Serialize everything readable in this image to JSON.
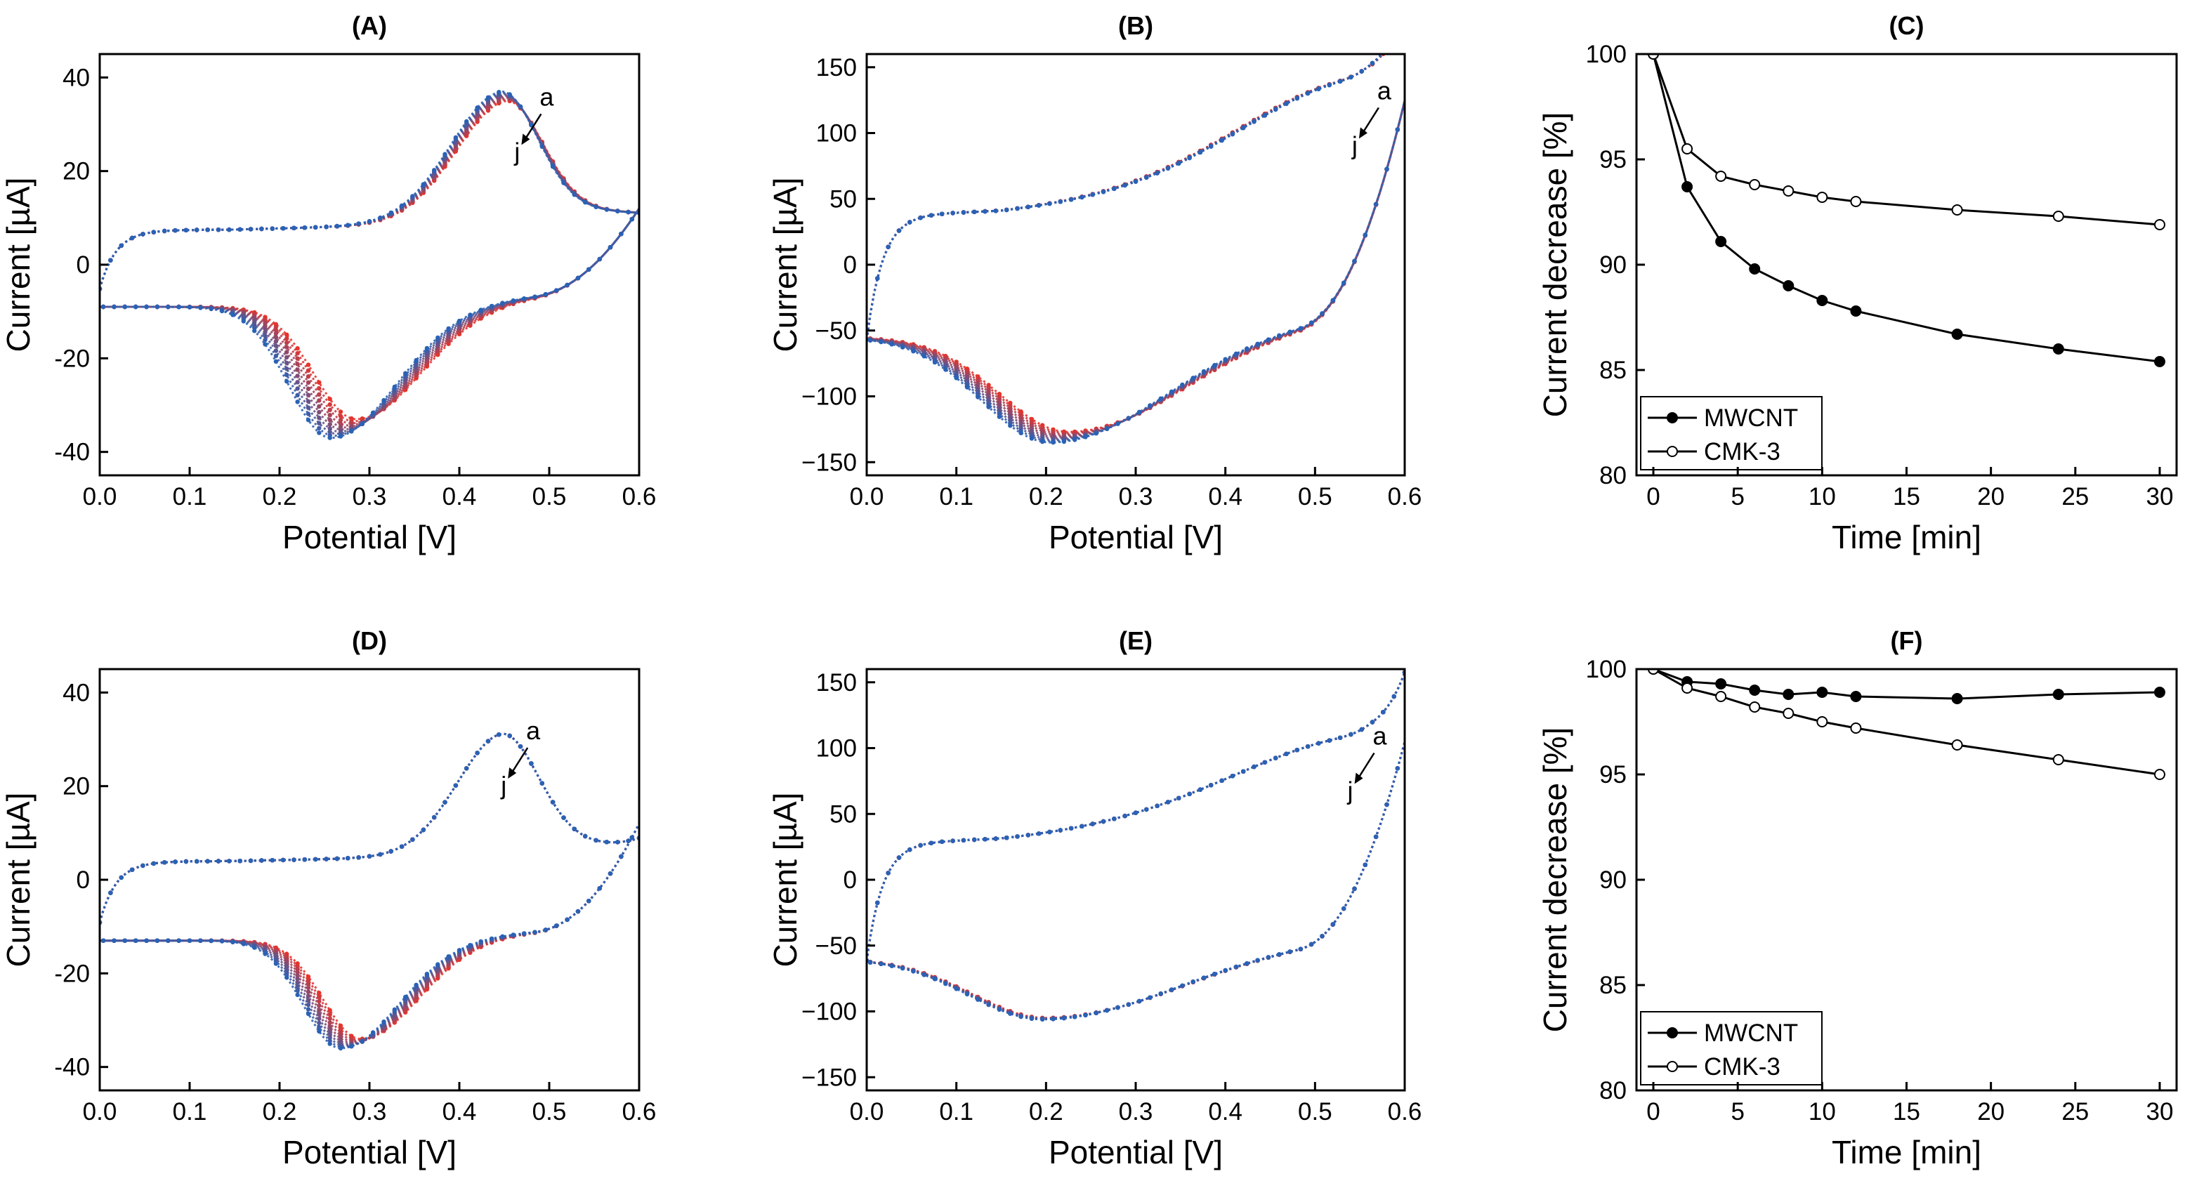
{
  "chart_data": [
    {
      "id": "A",
      "title": "(A)",
      "type": "line",
      "xlabel": "Potential [V]",
      "ylabel": "Current [µA]",
      "xlim": [
        0,
        0.6
      ],
      "ylim": [
        -45,
        45
      ],
      "xticks": [
        0.0,
        0.1,
        0.2,
        0.3,
        0.4,
        0.5,
        0.6
      ],
      "xtick_labels": [
        "0.0",
        "0.1",
        "0.2",
        "0.3",
        "0.4",
        "0.5",
        "0.6"
      ],
      "yticks": [
        -40,
        -20,
        0,
        20,
        40
      ],
      "ytick_labels": [
        "-40",
        "-20",
        "0",
        "20",
        "40"
      ],
      "grid": false,
      "cv": {
        "ilow": -9,
        "ihigh": 12,
        "i0": -5,
        "f0": 7.5,
        "fslope": 5,
        "opeak": 26,
        "oE": 0.455,
        "ow": 0.058,
        "ew": 0.03,
        "ramp": 0.5,
        "rpeak": -24,
        "rE": 0.285,
        "rw": 0.045,
        "rtail": 0.5,
        "bslope": 35
      },
      "variation": {
        "ox": -0.006,
        "oy": 2,
        "rx": -0.028,
        "ry": -4
      },
      "annotation": {
        "top": "a",
        "bottom": "j",
        "at": [
          0.48,
          31
        ]
      },
      "series_note": "10 cycles a–j, red (a) to blue (j)",
      "colors": {
        "first": "#e8342b",
        "last": "#2a62b5"
      }
    },
    {
      "id": "B",
      "title": "(B)",
      "type": "line",
      "xlabel": "Potential [V]",
      "ylabel": "Current [µA]",
      "xlim": [
        0,
        0.6
      ],
      "ylim": [
        -160,
        160
      ],
      "xticks": [
        0.0,
        0.1,
        0.2,
        0.3,
        0.4,
        0.5,
        0.6
      ],
      "xtick_labels": [
        "0.0",
        "0.1",
        "0.2",
        "0.3",
        "0.4",
        "0.5",
        "0.6"
      ],
      "yticks": [
        -150,
        -100,
        -50,
        0,
        50,
        100,
        150
      ],
      "ytick_labels": [
        "−150",
        "−100",
        "−50",
        "0",
        "50",
        "100",
        "150"
      ],
      "grid": false,
      "cv": {
        "ilow": -55,
        "ihigh": 125,
        "i0": -55,
        "f0": 40,
        "fslope": 60,
        "opeak": 78,
        "oE": 0.555,
        "ow": 0.14,
        "ew": 0.05,
        "ramp": 1.3,
        "rpeak": -72,
        "rE": 0.225,
        "rw": 0.075,
        "rtail": 0.35,
        "bslope": 180
      },
      "variation": {
        "ox": 0.004,
        "oy": 0,
        "rx": -0.02,
        "ry": -8
      },
      "annotation": {
        "top": "a",
        "bottom": "j",
        "at": [
          0.56,
          115
        ]
      },
      "series_note": "10 cycles a–j, red (a) to blue (j)",
      "colors": {
        "first": "#e8342b",
        "last": "#2a62b5"
      }
    },
    {
      "id": "C",
      "title": "(C)",
      "type": "line",
      "xlabel": "Time [min]",
      "ylabel": "Current decrease [%]",
      "xlim": [
        -1,
        31
      ],
      "ylim": [
        80,
        100
      ],
      "xticks": [
        0,
        5,
        10,
        15,
        20,
        25,
        30
      ],
      "xtick_labels": [
        "0",
        "5",
        "10",
        "15",
        "20",
        "25",
        "30"
      ],
      "yticks": [
        80,
        85,
        90,
        95,
        100
      ],
      "ytick_labels": [
        "80",
        "85",
        "90",
        "95",
        "100"
      ],
      "grid": false,
      "x": [
        0,
        2,
        4,
        6,
        8,
        10,
        12,
        18,
        24,
        30
      ],
      "series": [
        {
          "name": "MWCNT",
          "marker": "filled",
          "values": [
            100,
            93.7,
            91.1,
            89.8,
            89.0,
            88.3,
            87.8,
            86.7,
            86.0,
            85.4
          ]
        },
        {
          "name": "CMK-3",
          "marker": "open",
          "values": [
            100,
            95.5,
            94.2,
            93.8,
            93.5,
            93.2,
            93.0,
            92.6,
            92.3,
            91.9
          ]
        }
      ],
      "legend": "bottom-left"
    },
    {
      "id": "D",
      "title": "(D)",
      "type": "line",
      "xlabel": "Potential [V]",
      "ylabel": "Current [µA]",
      "xlim": [
        0,
        0.6
      ],
      "ylim": [
        -45,
        45
      ],
      "xticks": [
        0.0,
        0.1,
        0.2,
        0.3,
        0.4,
        0.5,
        0.6
      ],
      "xtick_labels": [
        "0.0",
        "0.1",
        "0.2",
        "0.3",
        "0.4",
        "0.5",
        "0.6"
      ],
      "yticks": [
        -40,
        -20,
        0,
        20,
        40
      ],
      "ytick_labels": [
        "-40",
        "-20",
        "0",
        "20",
        "40"
      ],
      "grid": false,
      "cv": {
        "ilow": -13,
        "ihigh": 12,
        "i0": -9,
        "f0": 4,
        "fslope": 4,
        "opeak": 26,
        "oE": 0.45,
        "ow": 0.052,
        "ew": 0.03,
        "ramp": 0.45,
        "rpeak": -21,
        "rE": 0.29,
        "rw": 0.04,
        "rtail": 0.5,
        "bslope": 28
      },
      "variation": {
        "ox": 0,
        "oy": 0,
        "rx": -0.022,
        "ry": -2
      },
      "annotation": {
        "top": "a",
        "bottom": "j",
        "at": [
          0.465,
          27
        ]
      },
      "series_note": "10 cycles a–j, red (a) to blue (j)",
      "colors": {
        "first": "#e8342b",
        "last": "#2a62b5"
      }
    },
    {
      "id": "E",
      "title": "(E)",
      "type": "line",
      "xlabel": "Potential [V]",
      "ylabel": "Current [µA]",
      "xlim": [
        0,
        0.6
      ],
      "ylim": [
        -160,
        160
      ],
      "xticks": [
        0.0,
        0.1,
        0.2,
        0.3,
        0.4,
        0.5,
        0.6
      ],
      "xtick_labels": [
        "0.0",
        "0.1",
        "0.2",
        "0.3",
        "0.4",
        "0.5",
        "0.6"
      ],
      "yticks": [
        -150,
        -100,
        -50,
        0,
        50,
        100,
        150
      ],
      "ytick_labels": [
        "−150",
        "−100",
        "−50",
        "0",
        "50",
        "100",
        "150"
      ],
      "grid": false,
      "cv": {
        "ilow": -60,
        "ihigh": 105,
        "i0": -60,
        "f0": 30,
        "fslope": 50,
        "opeak": 60,
        "oE": 0.56,
        "ow": 0.15,
        "ew": 0.05,
        "ramp": 1.2,
        "rpeak": -45,
        "rE": 0.2,
        "rw": 0.08,
        "rtail": 0.3,
        "bslope": 165
      },
      "variation": {
        "ox": 0,
        "oy": 0,
        "rx": -0.004,
        "ry": -1
      },
      "annotation": {
        "top": "a",
        "bottom": "j",
        "at": [
          0.555,
          92
        ]
      },
      "series_note": "10 cycles a–j, red (a) to blue (j)",
      "colors": {
        "first": "#e8342b",
        "last": "#2a62b5"
      }
    },
    {
      "id": "F",
      "title": "(F)",
      "type": "line",
      "xlabel": "Time [min]",
      "ylabel": "Current decrease [%]",
      "xlim": [
        -1,
        31
      ],
      "ylim": [
        80,
        100
      ],
      "xticks": [
        0,
        5,
        10,
        15,
        20,
        25,
        30
      ],
      "xtick_labels": [
        "0",
        "5",
        "10",
        "15",
        "20",
        "25",
        "30"
      ],
      "yticks": [
        80,
        85,
        90,
        95,
        100
      ],
      "ytick_labels": [
        "80",
        "85",
        "90",
        "95",
        "100"
      ],
      "grid": false,
      "x": [
        0,
        2,
        4,
        6,
        8,
        10,
        12,
        18,
        24,
        30
      ],
      "series": [
        {
          "name": "MWCNT",
          "marker": "filled",
          "values": [
            100,
            99.4,
            99.3,
            99.0,
            98.8,
            98.9,
            98.7,
            98.6,
            98.8,
            98.9
          ]
        },
        {
          "name": "CMK-3",
          "marker": "open",
          "values": [
            100,
            99.1,
            98.7,
            98.2,
            97.9,
            97.5,
            97.2,
            96.4,
            95.7,
            95.0
          ]
        }
      ],
      "legend": "bottom-left"
    }
  ]
}
